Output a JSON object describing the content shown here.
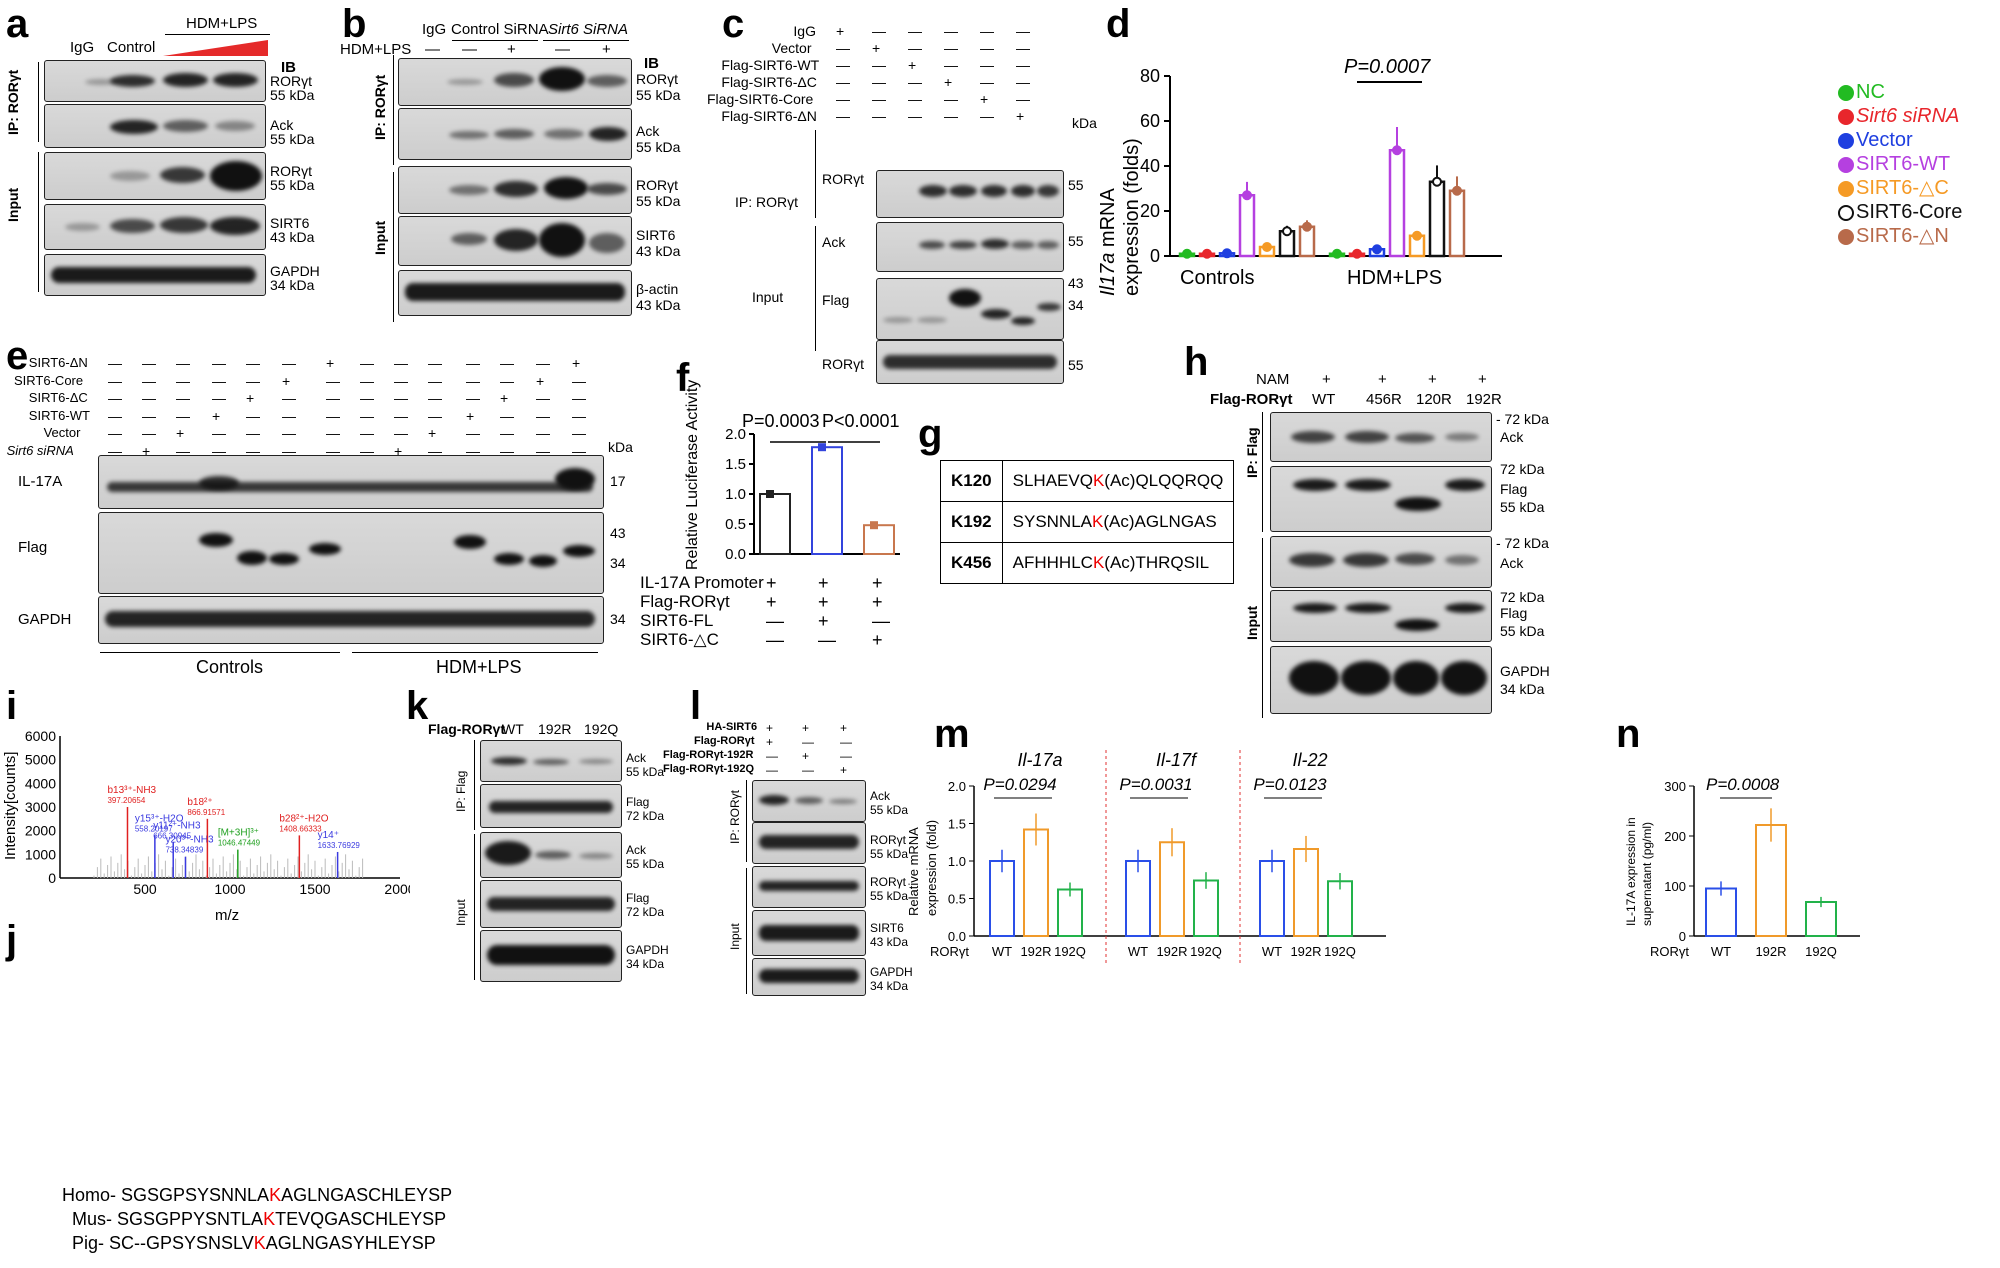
{
  "panels": {
    "a": {
      "label": "a",
      "lanes": [
        "IgG",
        "Control",
        "HDM+LPS"
      ],
      "ib": "IB",
      "ip": "IP: RORγt",
      "input": "Input",
      "blots": [
        {
          "name": "RORγt",
          "kda": "55 kDa"
        },
        {
          "name": "Ack",
          "kda": "55 kDa"
        },
        {
          "name": "RORγt",
          "kda": "55 kDa"
        },
        {
          "name": "SIRT6",
          "kda": "43 kDa"
        },
        {
          "name": "GAPDH",
          "kda": "34 kDa"
        }
      ]
    },
    "b": {
      "label": "b",
      "lanes": [
        "IgG",
        "Control SiRNA",
        "Sirt6 SiRNA"
      ],
      "hdm": "HDM+LPS",
      "signs": [
        "—",
        "—",
        "+",
        "—",
        "+"
      ],
      "ib": "IB",
      "ip": "IP: RORγt",
      "input": "Input",
      "blots": [
        {
          "name": "RORγt",
          "kda": "55 kDa"
        },
        {
          "name": "Ack",
          "kda": "55 kDa"
        },
        {
          "name": "RORγt",
          "kda": "55 kDa"
        },
        {
          "name": "SIRT6",
          "kda": "43 kDa"
        },
        {
          "name": "β-actin",
          "kda": "43 kDa"
        }
      ]
    },
    "c": {
      "label": "c",
      "rows": [
        {
          "name": "IgG",
          "signs": [
            "+",
            "—",
            "—",
            "—",
            "—",
            "—"
          ]
        },
        {
          "name": "Vector",
          "signs": [
            "—",
            "+",
            "—",
            "—",
            "—",
            "—"
          ]
        },
        {
          "name": "Flag-SIRT6-WT",
          "signs": [
            "—",
            "—",
            "+",
            "—",
            "—",
            "—"
          ]
        },
        {
          "name": "Flag-SIRT6-ΔC",
          "signs": [
            "—",
            "—",
            "—",
            "+",
            "—",
            "—"
          ]
        },
        {
          "name": "Flag-SIRT6-Core",
          "signs": [
            "—",
            "—",
            "—",
            "—",
            "+",
            "—"
          ]
        },
        {
          "name": "Flag-SIRT6-ΔN",
          "signs": [
            "—",
            "—",
            "—",
            "—",
            "—",
            "+"
          ]
        }
      ],
      "kda": "kDa",
      "ip": "IP: RORγt",
      "input": "Input",
      "blots": [
        {
          "name": "RORγt",
          "mw": "55"
        },
        {
          "name": "Ack",
          "mw": "55"
        },
        {
          "name": "Flag",
          "mw": "43",
          "mw2": "34"
        },
        {
          "name": "RORγt",
          "mw": "55"
        }
      ]
    },
    "d": {
      "label": "d",
      "ylabel_gene": "Il17a",
      "ylabel_rest": " mRNA",
      "ylabel2": "expression (folds)",
      "pval": "P=0.0007",
      "legend": [
        {
          "name": "NC",
          "color": "#22bb22"
        },
        {
          "name": "Sirt6 siRNA",
          "color": "#e8262c"
        },
        {
          "name": "Vector",
          "color": "#1f3fe0"
        },
        {
          "name": "SIRT6-WT",
          "color": "#b540e0"
        },
        {
          "name": "SIRT6-△C",
          "color": "#f59a25"
        },
        {
          "name": "SIRT6-Core",
          "color": "#111111"
        },
        {
          "name": "SIRT6-△N",
          "color": "#b86a4a"
        }
      ],
      "groups": [
        "Controls",
        "HDM+LPS"
      ]
    },
    "e": {
      "label": "e",
      "rows": [
        {
          "name": "SIRT6-ΔN",
          "col": [
            6,
            13
          ]
        },
        {
          "name": "SIRT6-Core",
          "col": [
            5,
            12
          ]
        },
        {
          "name": "SIRT6-ΔC",
          "col": [
            4,
            11
          ]
        },
        {
          "name": "SIRT6-WT",
          "col": [
            3,
            10
          ]
        },
        {
          "name": "Vector",
          "col": [
            2,
            9
          ]
        },
        {
          "name": "Sirt6 siRNA",
          "col": [
            1,
            8
          ]
        }
      ],
      "kda": "kDa",
      "blots": [
        {
          "name": "IL-17A",
          "mw": "17"
        },
        {
          "name": "Flag",
          "mw": "43",
          "mw2": "34"
        },
        {
          "name": "GAPDH",
          "mw": "34"
        }
      ],
      "groups": [
        "Controls",
        "HDM+LPS"
      ]
    },
    "f": {
      "label": "f",
      "ylabel": "Relative Luciferase Activity",
      "p1": "P=0.0003",
      "p2": "P<0.0001",
      "rows": [
        {
          "name": "IL-17A Promoter",
          "signs": [
            "+",
            "+",
            "+"
          ]
        },
        {
          "name": "Flag-RORγt",
          "signs": [
            "+",
            "+",
            "+"
          ]
        },
        {
          "name": "SIRT6-FL",
          "signs": [
            "—",
            "+",
            "—"
          ]
        },
        {
          "name": "SIRT6-△C",
          "signs": [
            "—",
            "—",
            "+"
          ]
        }
      ]
    },
    "g": {
      "label": "g",
      "rows": [
        {
          "site": "K120",
          "pre": "SLHAEVQ",
          "k": "K",
          "post": "(Ac)QLQQRQQ"
        },
        {
          "site": "K192",
          "pre": "SYSNNLA",
          "k": "K",
          "post": "(Ac)AGLNGAS"
        },
        {
          "site": "K456",
          "pre": "AFHHHLC",
          "k": "K",
          "post": "(Ac)THRQSIL"
        }
      ]
    },
    "h": {
      "label": "h",
      "nam": "NAM",
      "flag": "Flag-RORγt",
      "lanes": [
        "WT",
        "456R",
        "120R",
        "192R"
      ],
      "ip": "IP: Flag",
      "input": "Input",
      "blots": [
        {
          "kda": "- 72 kDa",
          "name": "Ack"
        },
        {
          "kda": "72 kDa",
          "name": "Flag",
          "kda2": "55 kDa"
        },
        {
          "kda": "- 72 kDa",
          "name": "Ack"
        },
        {
          "kda": "72 kDa",
          "name": "Flag",
          "kda2": "55 kDa"
        },
        {
          "name": "GAPDH",
          "kda": "34 kDa"
        }
      ]
    },
    "i": {
      "label": "i",
      "ylabel": "Intensity[counts]",
      "xlabel": "m/z",
      "yticks": [
        "6000",
        "5000",
        "4000",
        "3000",
        "2000",
        "1000",
        "0"
      ],
      "xticks": [
        "500",
        "1000",
        "1500",
        "2000"
      ],
      "peaks": [
        {
          "t": "b13³⁺-NH3",
          "v": "397.20654"
        },
        {
          "t": "y15³⁺-H2O",
          "v": "558.20197"
        },
        {
          "t": "y11²⁺-NH3",
          "v": "666.30945"
        },
        {
          "t": "y20³⁺-NH3",
          "v": "738.34839"
        },
        {
          "t": "b18²⁺",
          "v": "866.91571"
        },
        {
          "t": "[M+3H]³⁺",
          "v": "1046.47449"
        },
        {
          "t": "b28²⁺-H2O",
          "v": "1408.66333"
        },
        {
          "t": "y14⁺",
          "v": "1633.76929"
        }
      ]
    },
    "j": {
      "label": "j",
      "rows": [
        {
          "sp": "Homo-",
          "pre": "SGSGPSYSNNLA",
          "k": "K",
          "post": "AGLNGASCHLEYSP"
        },
        {
          "sp": "Mus-",
          "pre": "SGSGPPYSNTLA",
          "k": "K",
          "post": "TEVQGASCHLEYSP"
        },
        {
          "sp": "Pig-",
          "pre": "SC--GPSYSNSLV",
          "k": "K",
          "post": "AGLNGASYHLEYSP"
        }
      ]
    },
    "k": {
      "label": "k",
      "flag": "Flag-RORγt",
      "lanes": [
        "WT",
        "192R",
        "192Q"
      ],
      "ip": "IP: Flag",
      "input": "Input",
      "blots": [
        {
          "name": "Ack",
          "kda": "55 kDa"
        },
        {
          "name": "Flag",
          "kda": "72 kDa"
        },
        {
          "name": "Ack",
          "kda": "55 kDa"
        },
        {
          "name": "Flag",
          "kda": "72 kDa"
        },
        {
          "name": "GAPDH",
          "kda": "34 kDa"
        }
      ]
    },
    "l": {
      "label": "l",
      "rows": [
        {
          "name": "HA-SIRT6",
          "signs": [
            "+",
            "+",
            "+"
          ]
        },
        {
          "name": "Flag-RORγt",
          "signs": [
            "+",
            "—",
            "—"
          ]
        },
        {
          "name": "Flag-RORγt-192R",
          "signs": [
            "—",
            "+",
            "—"
          ]
        },
        {
          "name": "Flag-RORγt-192Q",
          "signs": [
            "—",
            "—",
            "+"
          ]
        }
      ],
      "ip": "IP: RORγt",
      "input": "Input",
      "blots": [
        {
          "name": "Ack",
          "kda": "55 kDa"
        },
        {
          "name": "RORγt",
          "kda": "55 kDa"
        },
        {
          "name": "RORγt",
          "kda": "55 kDa"
        },
        {
          "name": "SIRT6",
          "kda": "43 kDa"
        },
        {
          "name": "GAPDH",
          "kda": "34 kDa"
        }
      ]
    },
    "m": {
      "label": "m",
      "ylabel": "Relative mRNA",
      "ylabel2": "expression (fold)",
      "genes": [
        "Il-17a",
        "Il-17f",
        "Il-22"
      ],
      "pvals": [
        "P=0.0294",
        "P=0.0031",
        "P=0.0123"
      ],
      "xlabels": [
        "WT",
        "192R",
        "192Q"
      ],
      "xprefix": "RORγt",
      "yticks": [
        "2.0",
        "1.5",
        "1.0",
        "0.5",
        "0.0"
      ]
    },
    "n": {
      "label": "n",
      "ylabel": "IL-17A expression in",
      "ylabel2": "supernatant (pg/ml)",
      "pval": "P=0.0008",
      "xlabels": [
        "WT",
        "192R",
        "192Q"
      ],
      "xprefix": "RORγt",
      "yticks": [
        "300",
        "200",
        "100",
        "0"
      ]
    }
  },
  "chart_data": [
    {
      "type": "bar",
      "title": "d",
      "categories": [
        "Controls",
        "HDM+LPS"
      ],
      "series": [
        {
          "name": "NC",
          "values": [
            1,
            1
          ]
        },
        {
          "name": "Sirt6 siRNA",
          "values": [
            1,
            1
          ]
        },
        {
          "name": "Vector",
          "values": [
            1.2,
            3
          ]
        },
        {
          "name": "SIRT6-WT",
          "values": [
            27,
            47
          ]
        },
        {
          "name": "SIRT6-△C",
          "values": [
            4,
            9
          ]
        },
        {
          "name": "SIRT6-Core",
          "values": [
            11,
            33
          ]
        },
        {
          "name": "SIRT6-△N",
          "values": [
            13,
            29
          ]
        }
      ],
      "ylim": [
        0,
        80
      ],
      "yticks": [
        0,
        20,
        40,
        60,
        80
      ]
    },
    {
      "type": "bar",
      "title": "f",
      "categories": [
        "1",
        "2",
        "3"
      ],
      "values": [
        1.0,
        1.78,
        0.48
      ],
      "ylim": [
        0,
        2.0
      ],
      "yticks": [
        0.0,
        0.5,
        1.0,
        1.5,
        2.0
      ]
    },
    {
      "type": "bar",
      "title": "m",
      "categories": [
        "WT",
        "192R",
        "192Q"
      ],
      "series": [
        {
          "name": "Il-17a",
          "values": [
            1.0,
            1.42,
            0.62
          ]
        },
        {
          "name": "Il-17f",
          "values": [
            1.0,
            1.25,
            0.74
          ]
        },
        {
          "name": "Il-22",
          "values": [
            1.0,
            1.16,
            0.73
          ]
        }
      ],
      "ylim": [
        0,
        2.0
      ]
    },
    {
      "type": "bar",
      "title": "n",
      "categories": [
        "WT",
        "192R",
        "192Q"
      ],
      "values": [
        95,
        222,
        68
      ],
      "ylim": [
        0,
        300
      ]
    }
  ]
}
